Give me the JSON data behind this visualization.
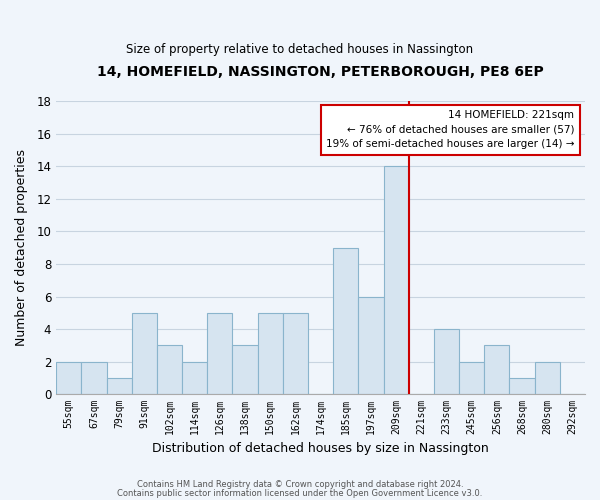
{
  "title": "14, HOMEFIELD, NASSINGTON, PETERBOROUGH, PE8 6EP",
  "subtitle": "Size of property relative to detached houses in Nassington",
  "xlabel": "Distribution of detached houses by size in Nassington",
  "ylabel": "Number of detached properties",
  "bar_labels": [
    "55sqm",
    "67sqm",
    "79sqm",
    "91sqm",
    "102sqm",
    "114sqm",
    "126sqm",
    "138sqm",
    "150sqm",
    "162sqm",
    "174sqm",
    "185sqm",
    "197sqm",
    "209sqm",
    "221sqm",
    "233sqm",
    "245sqm",
    "256sqm",
    "268sqm",
    "280sqm",
    "292sqm"
  ],
  "bar_values": [
    2,
    2,
    1,
    5,
    3,
    2,
    5,
    3,
    5,
    5,
    0,
    9,
    6,
    14,
    0,
    4,
    2,
    3,
    1,
    2,
    0
  ],
  "bar_color": "#d6e4f0",
  "bar_edge_color": "#8ab4cc",
  "vline_color": "#cc0000",
  "annotation_title": "14 HOMEFIELD: 221sqm",
  "annotation_line1": "← 76% of detached houses are smaller (57)",
  "annotation_line2": "19% of semi-detached houses are larger (14) →",
  "annotation_box_color": "#ffffff",
  "annotation_box_edge": "#cc0000",
  "ylim": [
    0,
    18
  ],
  "yticks": [
    0,
    2,
    4,
    6,
    8,
    10,
    12,
    14,
    16,
    18
  ],
  "footer1": "Contains HM Land Registry data © Crown copyright and database right 2024.",
  "footer2": "Contains public sector information licensed under the Open Government Licence v3.0.",
  "bg_color": "#f0f5fb",
  "grid_color": "#c8d4e0"
}
